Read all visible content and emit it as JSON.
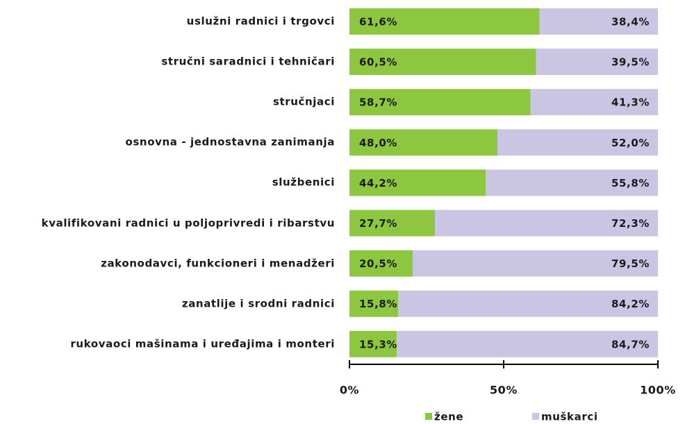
{
  "chart_data": {
    "type": "stacked-bar-horizontal",
    "categories": [
      "uslužni radnici i trgovci",
      "stručni saradnici i tehničari",
      "stručnjaci",
      "osnovna - jednostavna zanimanja",
      "službenici",
      "kvalifikovani radnici u poljoprivredi i ribarstvu",
      "zakonodavci, funkcioneri i menadžeri",
      "zanatlije i srodni radnici",
      "rukovaoci mašinama i uređajima i monteri"
    ],
    "series": [
      {
        "name": "žene",
        "color": "#8dc63f",
        "values": [
          61.6,
          60.5,
          58.7,
          48.0,
          44.2,
          27.7,
          20.5,
          15.8,
          15.3
        ],
        "value_labels": [
          "61,6%",
          "60,5%",
          "58,7%",
          "48,0%",
          "44,2%",
          "27,7%",
          "20,5%",
          "15,8%",
          "15,3%"
        ]
      },
      {
        "name": "muškarci",
        "color": "#c9c5e3",
        "values": [
          38.4,
          39.5,
          41.3,
          52.0,
          55.8,
          72.3,
          79.5,
          84.2,
          84.7
        ],
        "value_labels": [
          "38,4%",
          "39,5%",
          "41,3%",
          "52,0%",
          "55,8%",
          "72,3%",
          "79,5%",
          "84,2%",
          "84,7%"
        ]
      }
    ],
    "xlim": [
      0,
      100
    ],
    "xticks": [
      {
        "value": 0,
        "label": "0%"
      },
      {
        "value": 50,
        "label": "50%"
      },
      {
        "value": 100,
        "label": "100%"
      }
    ],
    "legend": "bottom"
  }
}
